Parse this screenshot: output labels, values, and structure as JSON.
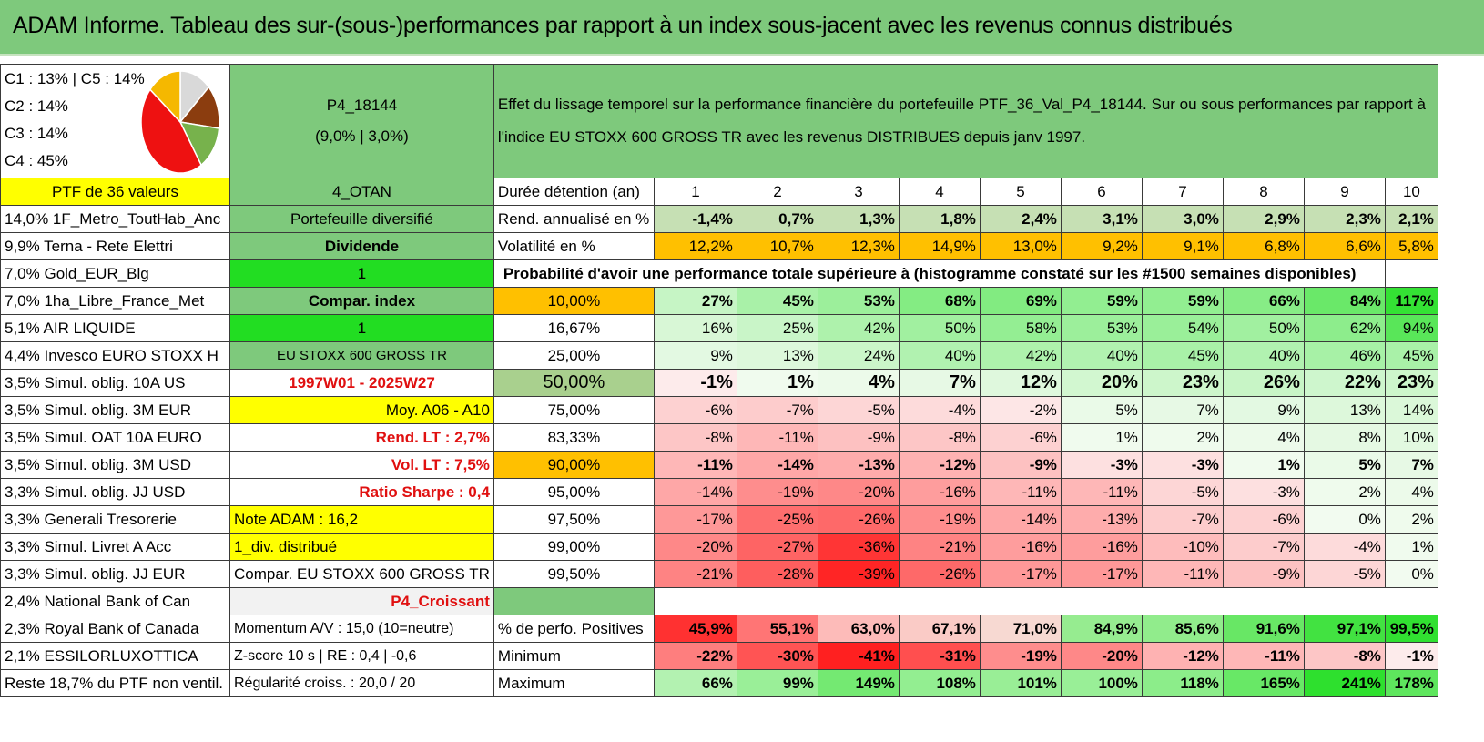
{
  "title": "ADAM Informe. Tableau des sur-(sous-)performances par rapport à un index sous-jacent avec les revenus connus distribués",
  "legend": [
    "C1 : 13% | C5 : 14%",
    "C2 : 14%",
    "C3 : 14%",
    "C4 : 45%"
  ],
  "pie": {
    "slices": [
      {
        "label": "C1",
        "value": 13,
        "color": "#d9d9d9"
      },
      {
        "label": "C2",
        "value": 14,
        "color": "#8b3d0f"
      },
      {
        "label": "C3",
        "value": 14,
        "color": "#77b24c"
      },
      {
        "label": "C4",
        "value": 45,
        "color": "#ee1111"
      },
      {
        "label": "C5",
        "value": 14,
        "color": "#f5b800"
      }
    ]
  },
  "portfolio": {
    "code": "P4_18144",
    "params": "(9,0% | 3,0%)"
  },
  "description": "Effet du lissage temporel sur la performance financière du portefeuille PTF_36_Val_P4_18144. Sur ou sous performances par rapport à l'indice EU STOXX 600 GROSS TR avec les revenus DISTRIBUES depuis janv 1997.",
  "holdings_header": "PTF de 36 valeurs",
  "holdings": [
    "14,0% 1F_Metro_ToutHab_Anc",
    "9,9% Terna - Rete Elettri",
    "7,0% Gold_EUR_Blg",
    "7,0% 1ha_Libre_France_Met",
    "5,1% AIR LIQUIDE",
    "4,4% Invesco EURO STOXX H",
    "3,5% Simul. oblig. 10A US",
    "3,5% Simul. oblig. 3M EUR",
    "3,5% Simul. OAT 10A EURO",
    "3,5% Simul. oblig. 3M USD",
    "3,3% Simul. oblig. JJ USD",
    "3,3% Generali Tresorerie",
    "3,3% Simul. Livret A Acc",
    "3,3% Simul. oblig. JJ EUR",
    "2,4% National Bank of Can",
    "2,3% Royal Bank of Canada",
    "2,1% ESSILORLUXOTTICA",
    "Reste 18,7% du PTF non ventil."
  ],
  "info": [
    "4_OTAN",
    "Portefeuille diversifié",
    "Dividende",
    "1",
    "Compar. index",
    "1",
    "EU STOXX 600 GROSS TR",
    "1997W01 - 2025W27",
    "Moy. A06 - A10",
    "Rend. LT : 2,7%",
    "Vol. LT : 7,5%",
    "Ratio Sharpe : 0,4",
    "Note ADAM : 16,2",
    "1_div. distribué",
    "Compar. EU STOXX 600 GROSS TR",
    "P4_Croissant",
    "Momentum A/V : 15,0 (10=neutre)",
    "Z-score 10 s | RE : 0,4 | -0,6",
    "Régularité croiss. : 20,0 / 20"
  ],
  "duration_label": "Durée détention (an)",
  "years": [
    "1",
    "2",
    "3",
    "4",
    "5",
    "6",
    "7",
    "8",
    "9",
    "10"
  ],
  "rend_label": "Rend. annualisé en %",
  "rend": [
    "-1,4%",
    "0,7%",
    "1,3%",
    "1,8%",
    "2,4%",
    "3,1%",
    "3,0%",
    "2,9%",
    "2,3%",
    "2,1%"
  ],
  "vol_label": "Volatilité en %",
  "vol": [
    "12,2%",
    "10,7%",
    "12,3%",
    "14,9%",
    "13,0%",
    "9,2%",
    "9,1%",
    "6,8%",
    "6,6%",
    "5,8%"
  ],
  "prob_title": "Probabilité d'avoir une performance totale supérieure à (histogramme constaté sur les #1500 semaines disponibles)",
  "prob_rows": [
    {
      "label": "10,00%",
      "values": [
        "27%",
        "45%",
        "53%",
        "68%",
        "69%",
        "59%",
        "59%",
        "66%",
        "84%",
        "117%"
      ]
    },
    {
      "label": "16,67%",
      "values": [
        "16%",
        "25%",
        "42%",
        "50%",
        "58%",
        "53%",
        "54%",
        "50%",
        "62%",
        "94%"
      ]
    },
    {
      "label": "25,00%",
      "values": [
        "9%",
        "13%",
        "24%",
        "40%",
        "42%",
        "40%",
        "45%",
        "40%",
        "46%",
        "45%"
      ]
    },
    {
      "label": "50,00%",
      "values": [
        "-1%",
        "1%",
        "4%",
        "7%",
        "12%",
        "20%",
        "23%",
        "26%",
        "22%",
        "23%"
      ]
    },
    {
      "label": "75,00%",
      "values": [
        "-6%",
        "-7%",
        "-5%",
        "-4%",
        "-2%",
        "5%",
        "7%",
        "9%",
        "13%",
        "14%"
      ]
    },
    {
      "label": "83,33%",
      "values": [
        "-8%",
        "-11%",
        "-9%",
        "-8%",
        "-6%",
        "1%",
        "2%",
        "4%",
        "8%",
        "10%"
      ]
    },
    {
      "label": "90,00%",
      "values": [
        "-11%",
        "-14%",
        "-13%",
        "-12%",
        "-9%",
        "-3%",
        "-3%",
        "1%",
        "5%",
        "7%"
      ]
    },
    {
      "label": "95,00%",
      "values": [
        "-14%",
        "-19%",
        "-20%",
        "-16%",
        "-11%",
        "-11%",
        "-5%",
        "-3%",
        "2%",
        "4%"
      ]
    },
    {
      "label": "97,50%",
      "values": [
        "-17%",
        "-25%",
        "-26%",
        "-19%",
        "-14%",
        "-13%",
        "-7%",
        "-6%",
        "0%",
        "2%"
      ]
    },
    {
      "label": "99,00%",
      "values": [
        "-20%",
        "-27%",
        "-36%",
        "-21%",
        "-16%",
        "-16%",
        "-10%",
        "-7%",
        "-4%",
        "1%"
      ]
    },
    {
      "label": "99,50%",
      "values": [
        "-21%",
        "-28%",
        "-39%",
        "-26%",
        "-17%",
        "-17%",
        "-11%",
        "-9%",
        "-5%",
        "0%"
      ]
    }
  ],
  "pos_label": "% de perfo. Positives",
  "pos": [
    "45,9%",
    "55,1%",
    "63,0%",
    "67,1%",
    "71,0%",
    "84,9%",
    "85,6%",
    "91,6%",
    "97,1%",
    "99,5%"
  ],
  "min_label": "Minimum",
  "min": [
    "-22%",
    "-30%",
    "-41%",
    "-31%",
    "-19%",
    "-20%",
    "-12%",
    "-11%",
    "-8%",
    "-1%"
  ],
  "max_label": "Maximum",
  "max": [
    "66%",
    "99%",
    "149%",
    "108%",
    "101%",
    "100%",
    "118%",
    "165%",
    "241%",
    "178%"
  ],
  "colors": {
    "header_green": "#7ec97c",
    "yellow": "#ffff00",
    "orange": "#ffc000",
    "bright_green": "#22dd22",
    "light_gray": "#f2f2f2",
    "rend_green": "#c6e0b4",
    "rend_green_dark": "#a9d08e"
  }
}
